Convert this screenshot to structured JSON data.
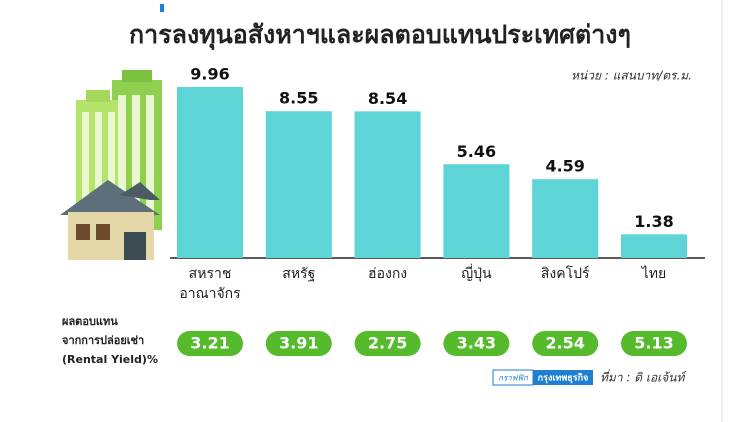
{
  "chart_data": {
    "type": "bar",
    "title": "การลงทุนอสังหาฯและผลตอบแทนประเทศต่างๆ",
    "unit_note": "หน่วย : แสนบาท/ตร.ม.",
    "categories": [
      "สหราช\nอาณาจักร",
      "สหรัฐ",
      "ฮ่องกง",
      "ญี่ปุ่น",
      "สิงคโปร์",
      "ไทย"
    ],
    "values": [
      9.96,
      8.55,
      8.54,
      5.46,
      4.59,
      1.38
    ],
    "color": "#5dd5d6",
    "rental_yield": {
      "label": "ผลตอบแทน\nจากการปล่อยเช่า\n(Rental Yield)%",
      "values": [
        3.21,
        3.91,
        2.75,
        3.43,
        2.54,
        5.13
      ],
      "color": "#55bb2c"
    },
    "source": {
      "graphic": "กราฟฟิก",
      "brand": "กรุงเทพธุรกิจ",
      "text": "ที่มา : ดิ เอเจ้นท์"
    }
  }
}
